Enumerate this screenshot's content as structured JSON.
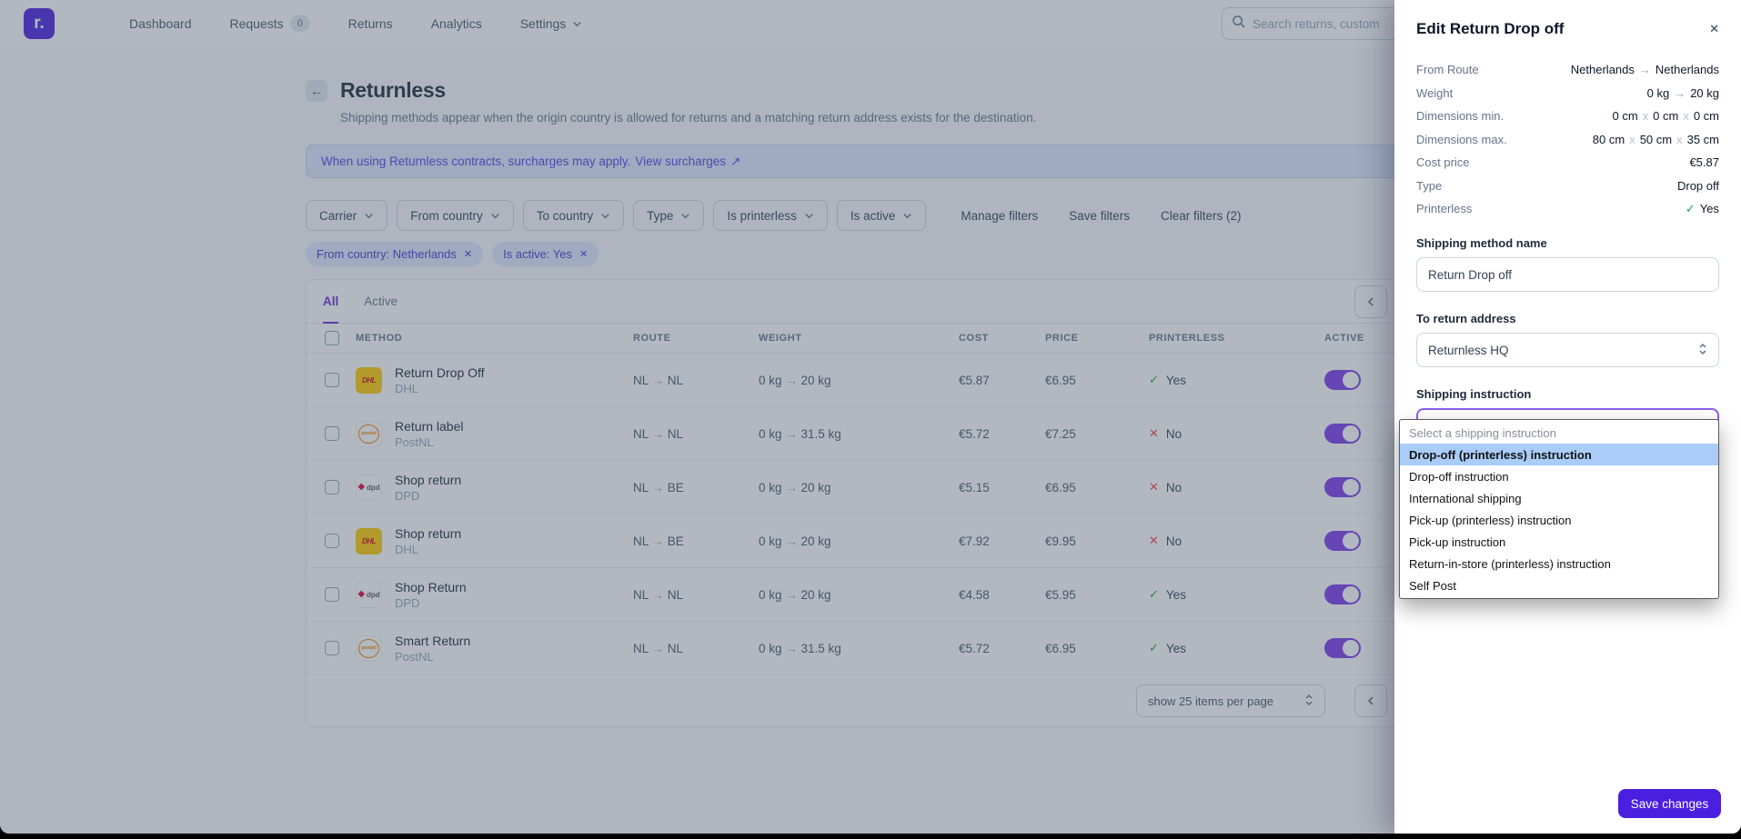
{
  "nav": {
    "brand": "r.",
    "items": [
      {
        "label": "Dashboard"
      },
      {
        "label": "Requests",
        "badge": "0"
      },
      {
        "label": "Returns"
      },
      {
        "label": "Analytics"
      },
      {
        "label": "Settings",
        "chevron": true
      }
    ],
    "search_placeholder": "Search returns, custom"
  },
  "page": {
    "title": "Returnless",
    "subtitle": "Shipping methods appear when the origin country is allowed for returns and a matching return address exists for the destination.",
    "banner": {
      "text": "When using Returnless contracts, surcharges may apply.",
      "link": "View surcharges",
      "arrow": "↗"
    }
  },
  "filters": {
    "dropdowns": [
      "Carrier",
      "From country",
      "To country",
      "Type",
      "Is printerless",
      "Is active"
    ],
    "actions": [
      "Manage filters",
      "Save filters",
      "Clear filters (2)"
    ],
    "chips": [
      "From country: Netherlands",
      "Is active: Yes"
    ]
  },
  "tabs": [
    "All",
    "Active"
  ],
  "table": {
    "headers": [
      "METHOD",
      "ROUTE",
      "WEIGHT",
      "COST",
      "PRICE",
      "PRINTERLESS",
      "ACTIVE"
    ],
    "rows": [
      {
        "method": "Return Drop Off",
        "carrier": "DHL",
        "route": "NL → NL",
        "weight": "0 kg → 20 kg",
        "cost": "€5.87",
        "price": "€6.95",
        "printerless": "Yes",
        "active": true
      },
      {
        "method": "Return label",
        "carrier": "PostNL",
        "route": "NL → NL",
        "weight": "0 kg → 31.5 kg",
        "cost": "€5.72",
        "price": "€7.25",
        "printerless": "No",
        "active": true
      },
      {
        "method": "Shop return",
        "carrier": "DPD",
        "route": "NL → BE",
        "weight": "0 kg → 20 kg",
        "cost": "€5.15",
        "price": "€6.95",
        "printerless": "No",
        "active": true
      },
      {
        "method": "Shop return",
        "carrier": "DHL",
        "route": "NL → BE",
        "weight": "0 kg → 20 kg",
        "cost": "€7.92",
        "price": "€9.95",
        "printerless": "No",
        "active": true
      },
      {
        "method": "Shop Return",
        "carrier": "DPD",
        "route": "NL → NL",
        "weight": "0 kg → 20 kg",
        "cost": "€4.58",
        "price": "€5.95",
        "printerless": "Yes",
        "active": true
      },
      {
        "method": "Smart Return",
        "carrier": "PostNL",
        "route": "NL → NL",
        "weight": "0 kg → 31.5 kg",
        "cost": "€5.72",
        "price": "€6.95",
        "printerless": "Yes",
        "active": true
      }
    ],
    "pagination": "show 25 items per page"
  },
  "panel": {
    "title": "Edit Return Drop off",
    "details": [
      {
        "label": "From Route",
        "value": "Netherlands → Netherlands"
      },
      {
        "label": "Weight",
        "value": "0 kg → 20 kg"
      },
      {
        "label": "Dimensions min.",
        "value": "0 cm x 0 cm x 0 cm"
      },
      {
        "label": "Dimensions max.",
        "value": "80 cm x 50 cm x 35 cm"
      },
      {
        "label": "Cost price",
        "value": "€5.87"
      },
      {
        "label": "Type",
        "value": "Drop off"
      },
      {
        "label": "Printerless",
        "value": "Yes",
        "check": true
      }
    ],
    "form": {
      "name_label": "Shipping method name",
      "name_value": "Return Drop off",
      "address_label": "To return address",
      "address_value": "Returnless HQ",
      "instruction_label": "Shipping instruction",
      "instruction_value": "Drop-off (printerless) instruction"
    },
    "dropdown_options": [
      "Select a shipping instruction",
      "Drop-off (printerless) instruction",
      "Drop-off instruction",
      "International shipping",
      "Pick-up (printerless) instruction",
      "Pick-up instruction",
      "Return-in-store (printerless) instruction",
      "Self Post"
    ],
    "dropdown_selected_index": 1,
    "save_label": "Save changes"
  },
  "colors": {
    "accent": "#4a1fe0",
    "toggle_on": "#7c3aed",
    "active_tab": "#6d28d9",
    "chip_bg": "#e0e7ff",
    "banner_text": "#4f46e5",
    "success": "#16a34a",
    "danger": "#ef4444",
    "dropdown_highlight": "#a9cdf8"
  }
}
